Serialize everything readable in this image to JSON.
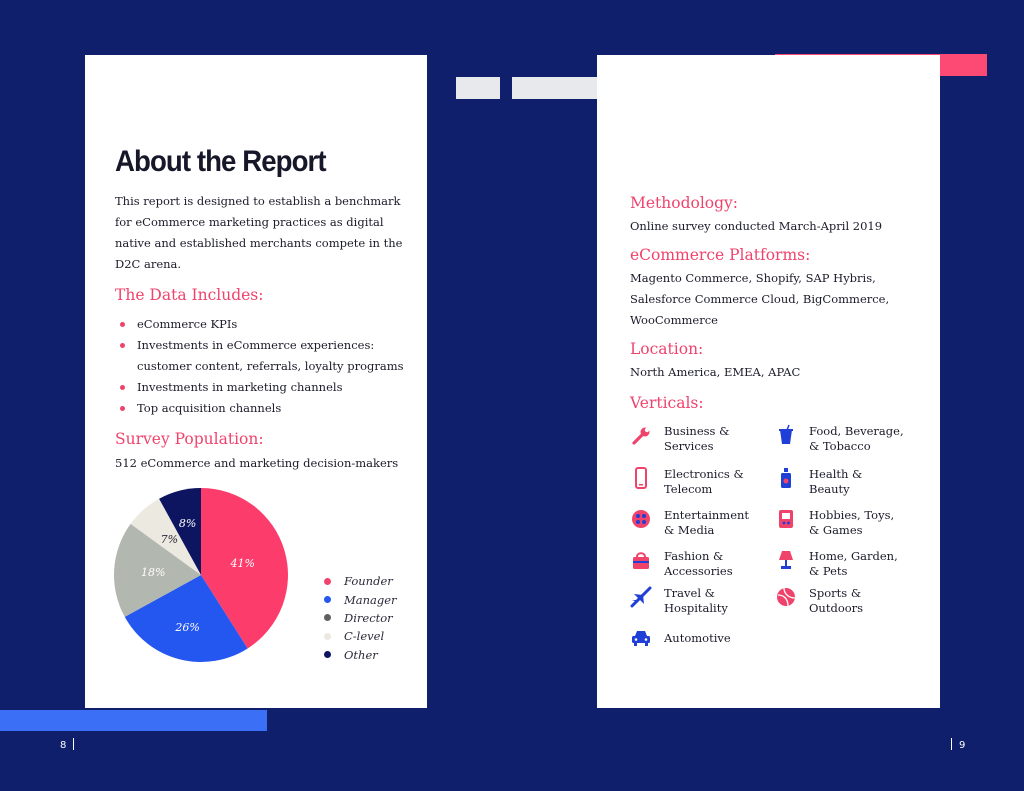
{
  "colors": {
    "navy": "#0f1f6b",
    "pink": "#f0436c",
    "blue": "#2456f0",
    "gray": "#b2b7b0",
    "cream": "#ebe9e0",
    "dark_navy": "#0e1560"
  },
  "left": {
    "title": "About the Report",
    "intro": "This report is designed to establish a benchmark for eCommerce marketing practices as digital native and established merchants compete in the D2C arena.",
    "data_heading": "The Data Includes:",
    "data_items": [
      "eCommerce KPIs",
      "Investments in eCommerce experiences: customer content, referrals, loyalty programs",
      "Investments in marketing channels",
      "Top acquisition channels"
    ],
    "survey_heading": "Survey Population:",
    "survey_text": "512 eCommerce and marketing decision-makers",
    "page_number": "8"
  },
  "chart_data": {
    "type": "pie",
    "title": "Survey Population",
    "slices": [
      {
        "label": "Founder",
        "value": 41,
        "display": "41%",
        "color": "#fc3d6c"
      },
      {
        "label": "Manager",
        "value": 26,
        "display": "26%",
        "color": "#2456f0"
      },
      {
        "label": "Director",
        "value": 18,
        "display": "18%",
        "color": "#b2b7b0"
      },
      {
        "label": "C-level",
        "value": 7,
        "display": "7%",
        "color": "#ebe9e0"
      },
      {
        "label": "Other",
        "value": 8,
        "display": "8%",
        "color": "#0e1560"
      }
    ],
    "legend": [
      "Founder",
      "Manager",
      "Director",
      "C-level",
      "Other"
    ],
    "legend_colors": [
      "#f0436c",
      "#2456f0",
      "#5f615e",
      "#ebe9e0",
      "#0e1560"
    ],
    "legend_position": "right"
  },
  "right": {
    "methodology_heading": "Methodology:",
    "methodology_text": "Online survey conducted March-April 2019",
    "platforms_heading": "eCommerce Platforms:",
    "platforms_text": "Magento Commerce, Shopify, SAP Hybris, Salesforce Commerce Cloud, BigCommerce, WooCommerce",
    "location_heading": "Location:",
    "location_text": "North America, EMEA, APAC",
    "verticals_heading": "Verticals:",
    "verticals": [
      {
        "label": "Business &\nServices",
        "icon": "wrench-icon"
      },
      {
        "label": "Food, Beverage,\n& Tobacco",
        "icon": "cup-icon"
      },
      {
        "label": "Electronics &\nTelecom",
        "icon": "phone-icon"
      },
      {
        "label": "Health &\nBeauty",
        "icon": "lotion-bottle-icon"
      },
      {
        "label": "Entertainment\n& Media",
        "icon": "film-reel-icon"
      },
      {
        "label": "Hobbies, Toys,\n& Games",
        "icon": "game-console-icon"
      },
      {
        "label": "Fashion &\nAccessories",
        "icon": "handbag-icon"
      },
      {
        "label": "Home, Garden,\n& Pets",
        "icon": "lamp-icon"
      },
      {
        "label": "Travel &\nHospitality",
        "icon": "airplane-icon"
      },
      {
        "label": "Sports &\nOutdoors",
        "icon": "ball-icon"
      },
      {
        "label": "Automotive",
        "icon": "car-icon"
      }
    ],
    "page_number": "9"
  }
}
